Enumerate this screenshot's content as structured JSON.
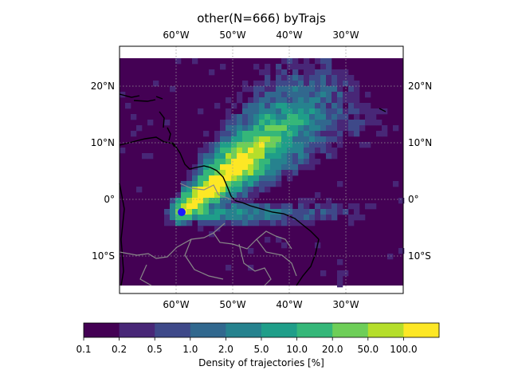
{
  "title": "other(N=666) byTrajs",
  "map": {
    "lon_ticks_top": [
      "60°W",
      "50°W",
      "40°W",
      "30°W"
    ],
    "lon_ticks_bottom": [
      "60°W",
      "50°W",
      "40°W",
      "30°W"
    ],
    "lat_ticks_left": [
      "20°N",
      "10°N",
      "0°",
      "10°S"
    ],
    "lat_ticks_right": [
      "20°N",
      "10°N",
      "0°",
      "10°S"
    ],
    "origin_marker_color": "#1a1aff",
    "background_color": "#440154"
  },
  "colorbar": {
    "label": "Density of trajectories [%]",
    "ticks": [
      "0.1",
      "0.2",
      "0.5",
      "1.0",
      "2.0",
      "5.0",
      "10.0",
      "20.0",
      "50.0",
      "100.0"
    ],
    "colors": [
      "#440154",
      "#482777",
      "#3e4989",
      "#31688e",
      "#26828e",
      "#1f9e89",
      "#35b779",
      "#6ece58",
      "#b5de2b",
      "#fde725"
    ]
  }
}
